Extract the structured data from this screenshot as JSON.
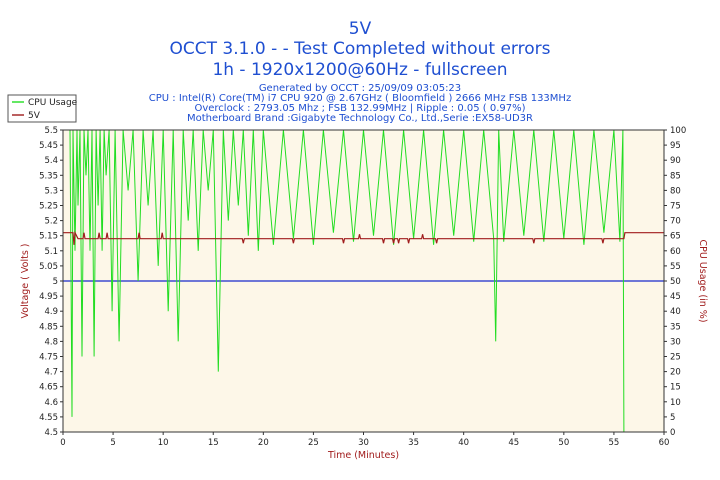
{
  "header": {
    "title": "5V",
    "subtitle1": "OCCT 3.1.0 -  - Test Completed without errors",
    "subtitle2": "1h - 1920x1200@60Hz - fullscreen",
    "info1": "Generated by OCCT : 25/09/09 03:05:23",
    "info2": "CPU : Intel(R) Core(TM) i7 CPU 920 @ 2.67GHz ( Bloomfield ) 2666 MHz FSB 133MHz",
    "info3": "Overclock : 2793.05 Mhz ; FSB 132.99MHz | Ripple : 0.05 ( 0.97%)",
    "info4": "Motherboard Brand :Gigabyte Technology Co., Ltd.,Serie :EX58-UD3R"
  },
  "colors": {
    "title": "#1f4fd1",
    "plot_bg": "#fdf7e8",
    "cpu_line": "#22dd22",
    "volt_line": "#a01c1c",
    "ref_line": "#1a2acc",
    "axis_label": "#a01c1c",
    "tick_text": "#222222"
  },
  "chart_data": {
    "type": "line",
    "xlabel": "Time (Minutes)",
    "ylabel_left": "Voltage  ( Volts )",
    "ylabel_right": "CPU Usage  (in %)",
    "xlim": [
      0,
      60
    ],
    "ylim_left": [
      4.5,
      5.5
    ],
    "ylim_right": [
      0,
      100
    ],
    "grid": false,
    "legend_placement": "top-left",
    "x_ticks": [
      0,
      5,
      10,
      15,
      20,
      25,
      30,
      35,
      40,
      45,
      50,
      55,
      60
    ],
    "y_left_ticks": [
      "5.5",
      "5.45",
      "5.4",
      "5.35",
      "5.3",
      "5.25",
      "5.2",
      "5.15",
      "5.1",
      "5.05",
      "5",
      "4.95",
      "4.9",
      "4.85",
      "4.8",
      "4.75",
      "4.7",
      "4.65",
      "4.6",
      "4.55",
      "4.5"
    ],
    "y_right_ticks": [
      "100",
      "95",
      "90",
      "85",
      "80",
      "75",
      "70",
      "65",
      "60",
      "55",
      "50",
      "45",
      "40",
      "35",
      "30",
      "25",
      "20",
      "15",
      "10",
      "5",
      "0"
    ],
    "reference_line": 5.0,
    "series": [
      {
        "name": "CPU Usage",
        "axis": "right",
        "x": [
          0,
          0.7,
          0.9,
          1.0,
          1.2,
          1.4,
          1.5,
          1.7,
          1.9,
          2.1,
          2.3,
          2.5,
          2.7,
          2.9,
          3.1,
          3.3,
          3.5,
          3.7,
          3.9,
          4.1,
          4.3,
          4.6,
          4.9,
          5.2,
          5.6,
          6.0,
          6.5,
          7.0,
          7.5,
          8.0,
          8.5,
          9.0,
          9.5,
          10.0,
          10.5,
          11.0,
          11.5,
          12.0,
          12.5,
          13.0,
          13.5,
          14.0,
          14.5,
          15.0,
          15.5,
          16.0,
          16.5,
          17.0,
          17.5,
          18.0,
          18.5,
          19.0,
          19.5,
          20.0,
          21.0,
          22.0,
          23.0,
          24.0,
          25.0,
          26.0,
          27.0,
          28.0,
          29.0,
          30.0,
          31.0,
          32.0,
          33.0,
          34.0,
          35.0,
          36.0,
          37.0,
          38.0,
          39.0,
          40.0,
          41.0,
          42.0,
          43.0,
          43.2,
          43.5,
          44.0,
          45.0,
          46.0,
          47.0,
          48.0,
          49.0,
          50.0,
          51.0,
          52.0,
          53.0,
          54.0,
          55.0,
          55.6,
          55.9,
          56.0,
          56.5,
          57.0,
          58.0,
          59.0,
          60.0
        ],
        "values": [
          100,
          100,
          5,
          100,
          60,
          100,
          75,
          100,
          25,
          100,
          85,
          100,
          60,
          100,
          25,
          100,
          75,
          100,
          60,
          100,
          85,
          100,
          40,
          100,
          30,
          100,
          80,
          100,
          50,
          100,
          75,
          100,
          55,
          100,
          40,
          100,
          30,
          100,
          70,
          100,
          60,
          100,
          80,
          100,
          20,
          100,
          70,
          100,
          75,
          100,
          65,
          100,
          60,
          100,
          62,
          100,
          64,
          100,
          62,
          100,
          66,
          100,
          63,
          100,
          65,
          100,
          62,
          100,
          64,
          100,
          62,
          100,
          65,
          100,
          63,
          100,
          64,
          30,
          100,
          63,
          100,
          65,
          100,
          63,
          100,
          64,
          100,
          62,
          100,
          66,
          100,
          63,
          100,
          0,
          0,
          0,
          0,
          0,
          0
        ],
        "color": "#22dd22"
      },
      {
        "name": "5V",
        "axis": "left",
        "x": [
          0,
          1.0,
          1.1,
          1.2,
          1.5,
          2.0,
          2.1,
          2.2,
          2.5,
          3.5,
          3.6,
          3.7,
          4.0,
          4.3,
          4.4,
          4.5,
          5.0,
          6.0,
          7.0,
          7.5,
          7.6,
          7.7,
          8.0,
          9.0,
          9.8,
          9.9,
          10.0,
          11.0,
          12.0,
          13.0,
          14.0,
          15.0,
          16.0,
          17.0,
          17.9,
          18.0,
          18.1,
          19.0,
          20.0,
          22.9,
          23.0,
          23.1,
          25.0,
          27.9,
          28.0,
          28.1,
          29.5,
          29.6,
          29.7,
          30.0,
          31.9,
          32.0,
          32.1,
          32.9,
          33.0,
          33.1,
          33.4,
          33.5,
          33.6,
          34.4,
          34.5,
          34.6,
          35.0,
          35.8,
          35.9,
          36.0,
          36.5,
          37.0,
          37.2,
          37.3,
          37.4,
          38.0,
          40.0,
          42.0,
          44.0,
          46.9,
          47.0,
          47.1,
          48.0,
          50.0,
          52.0,
          53.8,
          53.9,
          54.0,
          55.0,
          56.0,
          56.1,
          57.0,
          58.0,
          60.0
        ],
        "values": [
          5.16,
          5.16,
          5.12,
          5.16,
          5.14,
          5.14,
          5.16,
          5.14,
          5.14,
          5.14,
          5.16,
          5.14,
          5.14,
          5.14,
          5.16,
          5.14,
          5.14,
          5.14,
          5.14,
          5.14,
          5.16,
          5.14,
          5.14,
          5.14,
          5.14,
          5.16,
          5.14,
          5.14,
          5.14,
          5.14,
          5.14,
          5.14,
          5.14,
          5.14,
          5.14,
          5.125,
          5.14,
          5.14,
          5.14,
          5.14,
          5.125,
          5.14,
          5.14,
          5.14,
          5.125,
          5.14,
          5.14,
          5.155,
          5.14,
          5.14,
          5.14,
          5.125,
          5.14,
          5.14,
          5.125,
          5.14,
          5.14,
          5.125,
          5.14,
          5.14,
          5.125,
          5.14,
          5.14,
          5.14,
          5.155,
          5.14,
          5.14,
          5.14,
          5.14,
          5.125,
          5.14,
          5.14,
          5.14,
          5.14,
          5.14,
          5.14,
          5.125,
          5.14,
          5.14,
          5.14,
          5.14,
          5.14,
          5.125,
          5.14,
          5.14,
          5.14,
          5.16,
          5.16,
          5.16,
          5.16
        ],
        "color": "#a01c1c"
      }
    ]
  }
}
